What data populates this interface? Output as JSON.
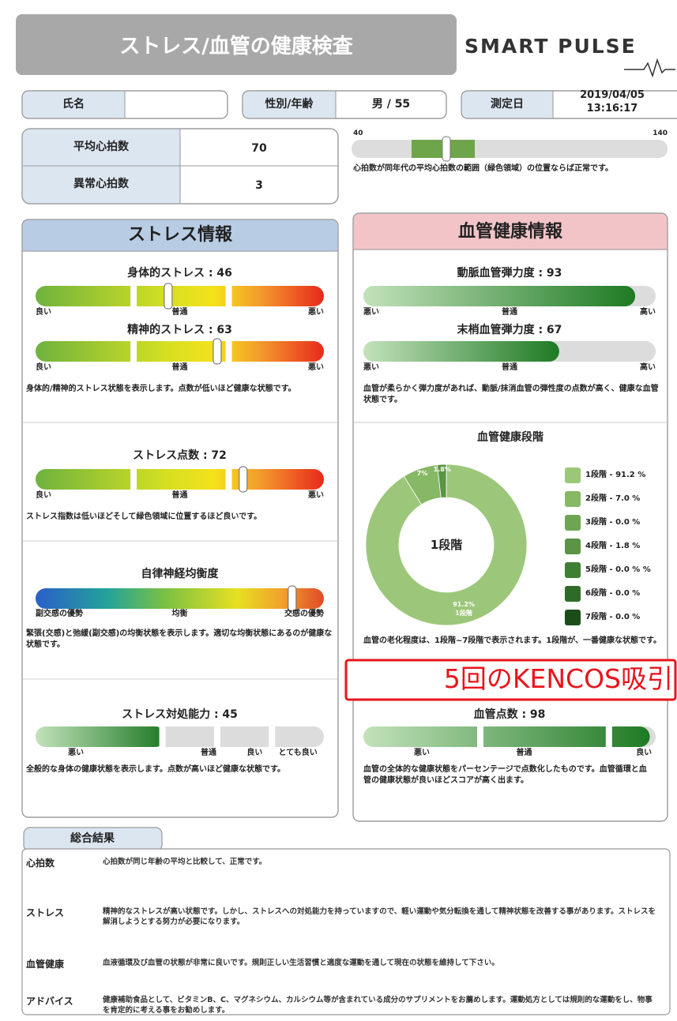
{
  "header": {
    "title": "ストレス/血管の健康検査",
    "logo": "SMART PULSE"
  },
  "info": {
    "name_label": "氏名",
    "sex_age_label": "性別/年齢",
    "sex_age": "男 / 55",
    "date_label": "測定日",
    "date": "2019/04/05",
    "time": "13:16:17"
  },
  "heart_rate": {
    "rows": [
      {
        "label": "平均心拍数",
        "value": 70
      },
      {
        "label": "異常心拍数",
        "value": 3
      }
    ],
    "scale": {
      "min": 40,
      "max": 140,
      "normal_range": [
        59,
        79
      ]
    },
    "note": "心拍数が同年代の平均心拍数の範囲（緑色領域）の位置ならば正常です。"
  },
  "stress": {
    "title": "ストレス情報",
    "sections": [
      {
        "gauges": [
          {
            "type": "gradient",
            "label": "身体的ストレス : 46",
            "value": 46,
            "xlim": [
              0,
              100
            ],
            "ticks": [
              "良い",
              "普通",
              "悪い"
            ]
          },
          {
            "type": "gradient",
            "label": "精神的ストレス : 63",
            "value": 63,
            "xlim": [
              0,
              100
            ],
            "ticks": [
              "良い",
              "普通",
              "悪い"
            ]
          }
        ],
        "note": "身体的/精神的ストレス状態を表示します。点数が低いほど健康な状態です。"
      },
      {
        "gauges": [
          {
            "type": "gradient",
            "label": "ストレス点数 : 72",
            "value": 72,
            "xlim": [
              0,
              100
            ],
            "ticks": [
              "良い",
              "普通",
              "悪い"
            ]
          }
        ],
        "note": "ストレス指数は低いほどそして緑色領域に位置するほど良いです。"
      },
      {
        "gauges": [
          {
            "type": "spectrum",
            "label": "自律神経均衡度",
            "value": 89,
            "xlim": [
              0,
              100
            ],
            "ticks": [
              "副交感の優勢",
              "均衡",
              "交感の優勢"
            ]
          }
        ],
        "note": "緊張(交感)と弛緩(副交感)の均衡状態を表示します。適切な均衡状態にあるのが健康な状態です。"
      },
      {
        "gauges": [
          {
            "type": "fill",
            "label": "ストレス対処能力 : 45",
            "value": 45,
            "xlim": [
              0,
              100
            ],
            "ticks": [
              "悪い",
              "普通",
              "良い",
              "とても良い"
            ]
          }
        ],
        "note": "全般的な身体の健康状態を表示します。点数が高いほど健康な状態です。"
      }
    ]
  },
  "vessel": {
    "title": "血管健康情報",
    "sections": [
      {
        "gauges": [
          {
            "type": "fill",
            "label": "動脈血管弾力度 : 93",
            "value": 93,
            "xlim": [
              0,
              100
            ],
            "ticks": [
              "悪い",
              "普通",
              "高い"
            ]
          },
          {
            "type": "fill",
            "label": "末梢血管弾力度 : 67",
            "value": 67,
            "xlim": [
              0,
              100
            ],
            "ticks": [
              "悪い",
              "普通",
              "高い"
            ]
          }
        ],
        "note": "血管が柔らかく弾力度があれば、動脈/抹消血管の弾性度の点数が高く、健康な血管状態です。"
      },
      {
        "chart_data": {
          "type": "donut",
          "title": "血管健康段階",
          "center_label": "1段階",
          "categories": [
            "1段階",
            "2段階",
            "3段階",
            "4段階",
            "5段階",
            "6段階",
            "7段階"
          ],
          "values": [
            91.2,
            7.0,
            0.0,
            1.8,
            0.0,
            0.0,
            0.0
          ],
          "legend_labels": [
            "1段階 - 91.2 %",
            "2段階 - 7.0 %",
            "3段階 - 0.0 %",
            "4段階 - 1.8 %",
            "5段階 - 0.0 % %",
            "6段階 - 0.0 %",
            "7段階 - 0.0 %"
          ],
          "value_labels": [
            "91.2%",
            "7%",
            null,
            "1.8%",
            null,
            null,
            null
          ],
          "colors": [
            "#9cc77a",
            "#86b865",
            "#6ea552",
            "#5a9444",
            "#3f7f33",
            "#2f6b28",
            "#1c4d19"
          ]
        },
        "note": "血管の老化程度は、1段階~7段階で表示されます。1段階が、一番健康な状態です。"
      },
      {
        "gauges": [
          {
            "type": "fill",
            "label": "血管点数 : 98",
            "value": 98,
            "xlim": [
              0,
              100
            ],
            "ticks": [
              "悪い",
              "普通",
              "良い"
            ]
          }
        ],
        "note": "血管の全体的な健康状態をパーセンテージで点数化したものです。血管循環と血管の健康状態が良いほどスコアが高く出ます。"
      }
    ]
  },
  "overlay": "5回のKENCOS吸引",
  "summary": {
    "title": "総合結果",
    "rows": [
      {
        "label": "心拍数",
        "text": "心拍数が同じ年齢の平均と比較して、正常です。"
      },
      {
        "label": "ストレス",
        "text": "精神的なストレスが高い状態です。しかし、ストレスへの対処能力を持っていますので、軽い運動や気分転換を通して精神状態を改善する事があります。ストレスを解消しようとする努力が必要になります。"
      },
      {
        "label": "血管健康",
        "text": "血液循環及び血管の状態が非常に良いです。規則正しい生活習慣と適度な運動を通して現在の状態を維持して下さい。"
      },
      {
        "label": "アドバイス",
        "text": "健康補助食品として、ビタミンB、C、マグネシウム、カルシウム等が含まれている成分のサプリメントをお薦めします。運動処方としては規則的な運動をし、物事を肯定的に考える事をお勧めします。"
      }
    ]
  }
}
